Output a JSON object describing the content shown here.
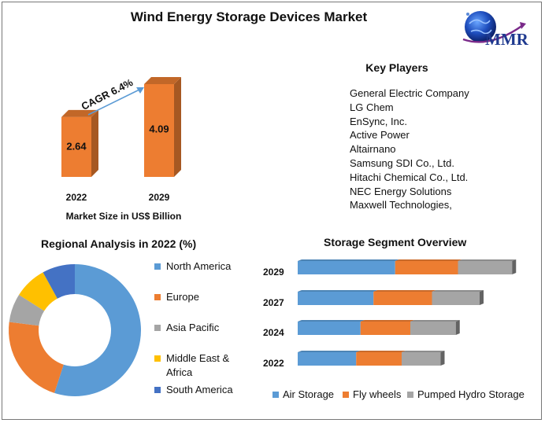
{
  "title": "Wind Energy Storage Devices Market",
  "logo": {
    "text": "MMR"
  },
  "key_players": {
    "title": "Key Players",
    "items": [
      "General Electric Company",
      "LG Chem",
      "EnSync, Inc.",
      "Active Power",
      "Altairnano",
      "Samsung SDI Co., Ltd.",
      "Hitachi Chemical Co., Ltd.",
      "NEC Energy Solutions",
      "Maxwell Technologies,"
    ]
  },
  "colors": {
    "orange": "#ED7D31",
    "blue": "#5B9BD5",
    "gray": "#A5A5A5",
    "yellow": "#FFC000",
    "dark_blue": "#4472C4",
    "arrow": "#5B9BD5"
  },
  "chart_data": [
    {
      "type": "bar",
      "title": "",
      "categories": [
        "2022",
        "2029"
      ],
      "values": [
        2.64,
        4.09
      ],
      "value_labels": [
        "2.64",
        "4.09"
      ],
      "xlabel": "Market Size in US$ Billion",
      "ylabel": "",
      "annotation": "CAGR 6.4%",
      "ylim": [
        0,
        4.09
      ]
    },
    {
      "type": "pie",
      "subtype": "donut",
      "title": "Regional Analysis in 2022 (%)",
      "legend_position": "right",
      "slices": [
        {
          "name": "North America",
          "value": 55,
          "color": "#5B9BD5"
        },
        {
          "name": "Europe",
          "value": 22,
          "color": "#ED7D31"
        },
        {
          "name": "Asia Pacific",
          "value": 7,
          "color": "#A5A5A5"
        },
        {
          "name": "Middle East & Africa",
          "value": 8,
          "color": "#FFC000"
        },
        {
          "name": "South America",
          "value": 8,
          "color": "#4472C4"
        }
      ]
    },
    {
      "type": "bar",
      "orientation": "horizontal",
      "stacked": true,
      "title": "Storage Segment Overview",
      "legend_position": "bottom",
      "categories": [
        "2029",
        "2027",
        "2024",
        "2022"
      ],
      "series": [
        {
          "name": "Air Storage",
          "values": [
            45,
            35,
            29,
            27
          ],
          "color": "#5B9BD5"
        },
        {
          "name": "Fly wheels",
          "values": [
            29,
            27,
            23,
            21
          ],
          "color": "#ED7D31"
        },
        {
          "name": "Pumped Hydro Storage",
          "values": [
            25,
            22,
            21,
            18
          ],
          "color": "#A5A5A5"
        }
      ]
    }
  ]
}
